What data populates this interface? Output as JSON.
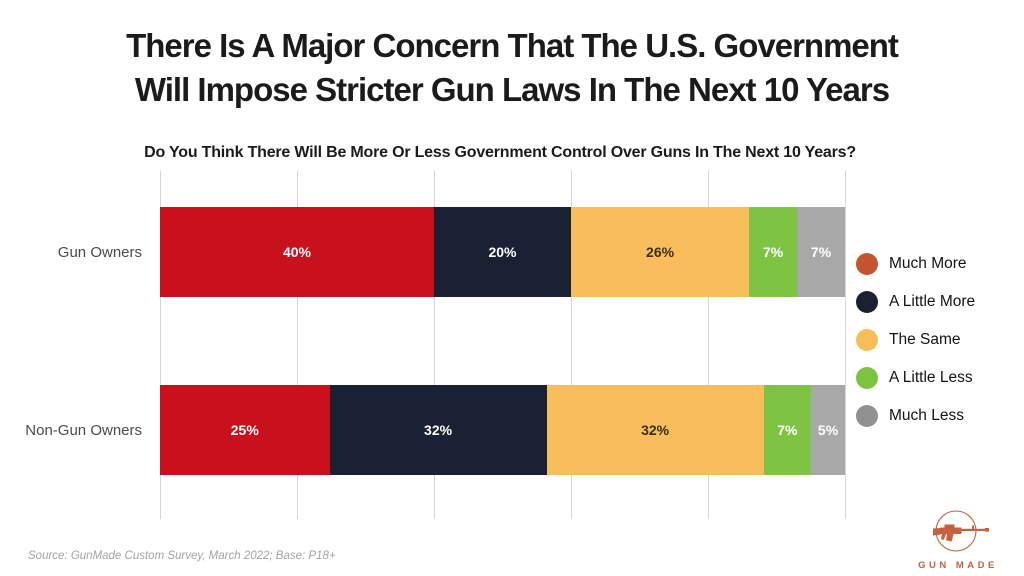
{
  "header": {
    "title_line1": "There Is A Major Concern That The U.S. Government",
    "title_line2": "Will Impose Stricter Gun Laws In The Next 10 Years"
  },
  "chart_data": {
    "type": "bar",
    "orientation": "horizontal",
    "stacked": true,
    "title": "Do You Think There Will Be More Or Less Government Control Over Guns In The Next 10 Years?",
    "categories": [
      "Gun Owners",
      "Non-Gun Owners"
    ],
    "series": [
      {
        "name": "Much More",
        "values": [
          40,
          25
        ],
        "bar_color": "#c9111d",
        "legend_color": "#c5542e",
        "label_color": "#ffffff"
      },
      {
        "name": "A Little More",
        "values": [
          20,
          32
        ],
        "bar_color": "#1a2133",
        "legend_color": "#1a2133",
        "label_color": "#ffffff"
      },
      {
        "name": "The Same",
        "values": [
          26,
          32
        ],
        "bar_color": "#f8be5c",
        "legend_color": "#f5be58",
        "label_color": "#3a2e10"
      },
      {
        "name": "A Little Less",
        "values": [
          7,
          7
        ],
        "bar_color": "#7fc343",
        "legend_color": "#7dc341",
        "label_color": "#ffffff"
      },
      {
        "name": "Much Less",
        "values": [
          7,
          5
        ],
        "bar_color": "#a8a8a8",
        "legend_color": "#919191",
        "label_color": "#ffffff"
      }
    ],
    "value_suffix": "%",
    "xlim": [
      0,
      100
    ],
    "gridlines_percent": [
      0,
      20,
      40,
      60,
      80,
      100
    ],
    "grid": true,
    "legend_position": "right"
  },
  "footer": {
    "source": "Source: GunMade Custom Survey, March 2022; Base: P18+"
  },
  "logo": {
    "text": "GUN MADE",
    "color": "#c4613f"
  },
  "colors": {
    "background": "#ffffff",
    "grid": "#d6d6d6",
    "title": "#1b1b1b",
    "category_label": "#4b4b4b",
    "source_text": "#a3a3a3"
  }
}
